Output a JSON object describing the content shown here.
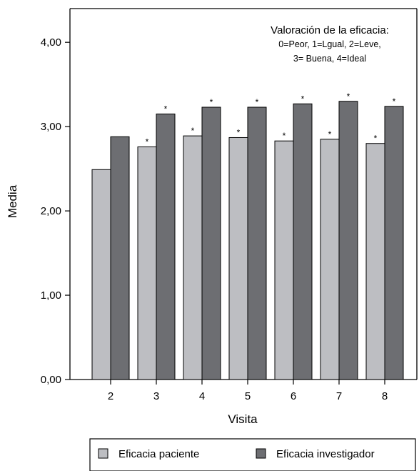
{
  "chart_data": {
    "type": "bar",
    "categories": [
      "2",
      "3",
      "4",
      "5",
      "6",
      "7",
      "8"
    ],
    "series": [
      {
        "name": "Eficacia paciente",
        "color": "#bdbec2",
        "values": [
          2.49,
          2.76,
          2.89,
          2.87,
          2.83,
          2.85,
          2.8
        ],
        "significant": [
          false,
          true,
          true,
          true,
          true,
          true,
          true
        ]
      },
      {
        "name": "Eficacia investigador",
        "color": "#6d6e72",
        "values": [
          2.88,
          3.15,
          3.23,
          3.23,
          3.27,
          3.3,
          3.24
        ],
        "significant": [
          false,
          true,
          true,
          true,
          true,
          true,
          true
        ]
      }
    ],
    "xlabel": "Visita",
    "ylabel": "Media",
    "ylim": [
      0,
      4.4
    ],
    "yticks": [
      "0,00",
      "1,00",
      "2,00",
      "3,00",
      "4,00"
    ],
    "ytick_values": [
      0,
      1,
      2,
      3,
      4
    ],
    "significance_marker": "*",
    "annotation": {
      "title": "Valoración de la eficacia:",
      "lines": [
        "0=Peor, 1=Lgual, 2=Leve,",
        "3= Buena, 4=Ideal"
      ]
    },
    "legend_position": "bottom",
    "grid": false
  }
}
